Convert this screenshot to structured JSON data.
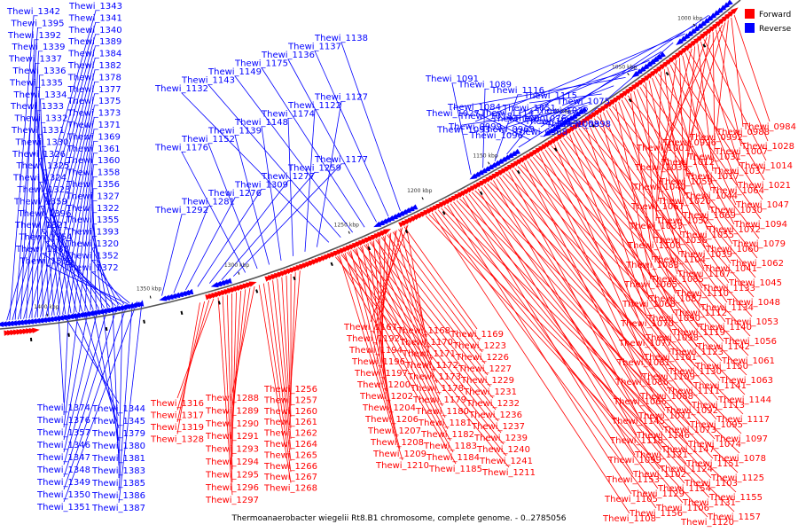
{
  "caption": "Thermoanaerobacter wiegelii Rt8.B1 chromosome, complete genome. - 0..2785056",
  "legend": [
    {
      "label": "Forward",
      "color": "#ff0000"
    },
    {
      "label": "Reverse",
      "color": "#0000ff"
    }
  ],
  "colors": {
    "forward": "#ff0000",
    "reverse": "#0000ff",
    "backbone": "#555555"
  },
  "ticks": [
    "1000 kbp",
    "1050 kbp",
    "1100 kbp",
    "1150 kbp",
    "1200 kbp",
    "1250 kbp",
    "1300 kbp",
    "1350 kbp",
    "1400 kbp"
  ],
  "genes": {
    "reverse_upper_left": [
      "Thewi_1343",
      "Thewi_1342",
      "Thewi_1341",
      "Thewi_1395",
      "Thewi_1340",
      "Thewi_1392",
      "Thewi_1389",
      "Thewi_1339",
      "Thewi_1384",
      "Thewi_1337",
      "Thewi_1382",
      "Thewi_1336",
      "Thewi_1378",
      "Thewi_1335",
      "Thewi_1377",
      "Thewi_1334",
      "Thewi_1375",
      "Thewi_1333",
      "Thewi_1373",
      "Thewi_1332",
      "Thewi_1371",
      "Thewi_1331",
      "Thewi_1369",
      "Thewi_1330",
      "Thewi_1361",
      "Thewi_1326",
      "Thewi_1360",
      "Thewi_1325",
      "Thewi_1358",
      "Thewi_1324",
      "Thewi_1356",
      "Thewi_1323",
      "Thewi_1327",
      "Thewi_1359",
      "Thewi_1322",
      "Thewi_1396",
      "Thewi_1355",
      "Thewi_1321",
      "Thewi_1393",
      "Thewi_1354",
      "Thewi_1320",
      "Thewi_1388",
      "Thewi_1352",
      "Thewi_1338",
      "Thewi_1372"
    ],
    "reverse_upper_mid": [
      "Thewi_1292",
      "Thewi_1281",
      "Thewi_1276",
      "Thewi_1309",
      "Thewi_1277",
      "Thewi_1259",
      "Thewi_1177",
      "Thewi_1176",
      "Thewi_1152",
      "Thewi_1139",
      "Thewi_1148",
      "Thewi_1174",
      "Thewi_1122",
      "Thewi_1127",
      "Thewi_1132",
      "Thewi_1143",
      "Thewi_1149",
      "Thewi_1175",
      "Thewi_1136",
      "Thewi_1137",
      "Thewi_1138"
    ],
    "reverse_upper_right": [
      "Thewi_1091",
      "Thewi_1089",
      "Thewi_1116",
      "Thewi_1115",
      "Thewi_1075",
      "Thewi_1084",
      "Thewi_1114",
      "Thewi_1076",
      "Thewi_1058",
      "Thewi_1093",
      "Thewi_1096",
      "Thewi_1051",
      "Thewi_1032",
      "Thewi_1027",
      "Thewi_1018",
      "Thewi_1000",
      "Thewi_1015",
      "Thewi_0998",
      "Thewi_0999",
      "Thewi_0969",
      "Thewi_0968"
    ],
    "forward_right": [
      "Thewi_0984",
      "Thewi_0988",
      "Thewi_0992",
      "Thewi_0996",
      "Thewi_1001",
      "Thewi_1028",
      "Thewi_1007",
      "Thewi_1031",
      "Thewi_1012",
      "Thewi_1035",
      "Thewi_1014",
      "Thewi_1037",
      "Thewi_1017",
      "Thewi_1059",
      "Thewi_1040",
      "Thewi_1021",
      "Thewi_1064",
      "Thewi_1044",
      "Thewi_1026",
      "Thewi_1067",
      "Thewi_1047",
      "Thewi_1030",
      "Thewi_1069",
      "Thewi_1052",
      "Thewi_1033",
      "Thewi_1094",
      "Thewi_1072",
      "Thewi_1055",
      "Thewi_1036",
      "Thewi_1100",
      "Thewi_1079",
      "Thewi_1060",
      "Thewi_1039",
      "Thewi_1104",
      "Thewi_1083",
      "Thewi_1062",
      "Thewi_1041",
      "Thewi_1107",
      "Thewi_1085",
      "Thewi_1065",
      "Thewi_1045",
      "Thewi_1133",
      "Thewi_1110",
      "Thewi_1087",
      "Thewi_1068",
      "Thewi_1048",
      "Thewi_1134",
      "Thewi_1112",
      "Thewi_1090",
      "Thewi_1070",
      "Thewi_1053",
      "Thewi_1140",
      "Thewi_1119",
      "Thewi_1098",
      "Thewi_1077",
      "Thewi_1056",
      "Thewi_1142",
      "Thewi_1123",
      "Thewi_1101",
      "Thewi_1081",
      "Thewi_1061",
      "Thewi_1150",
      "Thewi_1130",
      "Thewi_1109",
      "Thewi_1086",
      "Thewi_1063",
      "Thewi_1141",
      "Thewi_1111",
      "Thewi_1088",
      "Thewi_1066",
      "Thewi_1144",
      "Thewi_1113",
      "Thewi_1092",
      "Thewi_1071",
      "Thewi_1145",
      "Thewi_1117",
      "Thewi_1095",
      "Thewi_1073",
      "Thewi_1146",
      "Thewi_1118",
      "Thewi_1097",
      "Thewi_1074",
      "Thewi_1147",
      "Thewi_1121",
      "Thewi_1099",
      "Thewi_1078",
      "Thewi_1151",
      "Thewi_1124",
      "Thewi_1102",
      "Thewi_1153",
      "Thewi_1125",
      "Thewi_1103",
      "Thewi_1154",
      "Thewi_1129",
      "Thewi_1105",
      "Thewi_1155",
      "Thewi_1131",
      "Thewi_1106",
      "Thewi_1156",
      "Thewi_1108",
      "Thewi_1157",
      "Thewi_1120"
    ],
    "forward_mid": [
      "Thewi_1167",
      "Thewi_1168",
      "Thewi_1169",
      "Thewi_1192",
      "Thewi_1170",
      "Thewi_1223",
      "Thewi_1194",
      "Thewi_1171",
      "Thewi_1226",
      "Thewi_1196",
      "Thewi_1172",
      "Thewi_1227",
      "Thewi_1197",
      "Thewi_1173",
      "Thewi_1229",
      "Thewi_1200",
      "Thewi_1178",
      "Thewi_1231",
      "Thewi_1202",
      "Thewi_1179",
      "Thewi_1232",
      "Thewi_1204",
      "Thewi_1180",
      "Thewi_1236",
      "Thewi_1206",
      "Thewi_1181",
      "Thewi_1237",
      "Thewi_1207",
      "Thewi_1182",
      "Thewi_1239",
      "Thewi_1208",
      "Thewi_1183",
      "Thewi_1240",
      "Thewi_1209",
      "Thewi_1184",
      "Thewi_1241",
      "Thewi_1210",
      "Thewi_1185",
      "Thewi_1211"
    ],
    "forward_left": [
      "Thewi_1256",
      "Thewi_1257",
      "Thewi_1260",
      "Thewi_1261",
      "Thewi_1262",
      "Thewi_1264",
      "Thewi_1265",
      "Thewi_1266",
      "Thewi_1267",
      "Thewi_1268",
      "Thewi_1288",
      "Thewi_1289",
      "Thewi_1290",
      "Thewi_1291",
      "Thewi_1293",
      "Thewi_1294",
      "Thewi_1295",
      "Thewi_1296",
      "Thewi_1297",
      "Thewi_1316",
      "Thewi_1317",
      "Thewi_1319",
      "Thewi_1328"
    ],
    "reverse_lower_left": [
      "Thewi_1374",
      "Thewi_1344",
      "Thewi_1376",
      "Thewi_1345",
      "Thewi_1357",
      "Thewi_1379",
      "Thewi_1346",
      "Thewi_1380",
      "Thewi_1347",
      "Thewi_1381",
      "Thewi_1348",
      "Thewi_1383",
      "Thewi_1349",
      "Thewi_1385",
      "Thewi_1350",
      "Thewi_1386",
      "Thewi_1351",
      "Thewi_1387"
    ]
  }
}
